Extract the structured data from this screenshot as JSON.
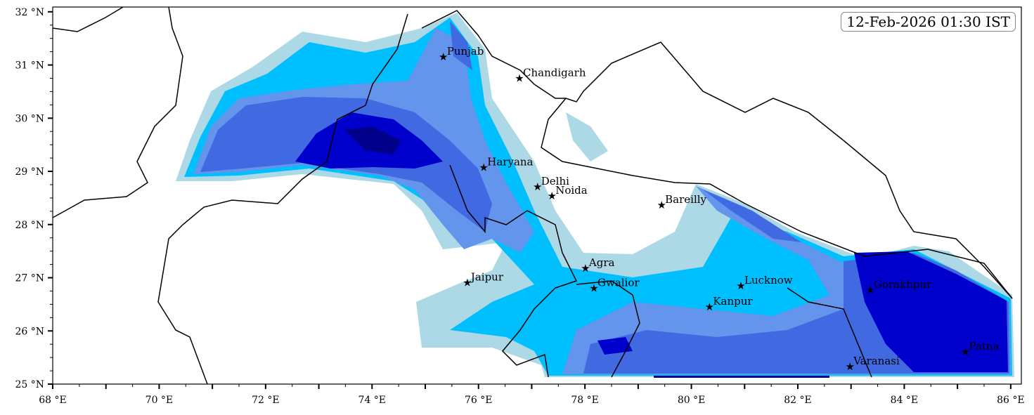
{
  "timestamp": "12-Feb-2026 01:30 IST",
  "axes": {
    "lon_range": [
      68,
      86.2
    ],
    "lat_range": [
      25,
      32.09
    ],
    "x_ticks": [
      {
        "v": 68,
        "label": "68 °E"
      },
      {
        "v": 70,
        "label": "70 °E"
      },
      {
        "v": 72,
        "label": "72 °E"
      },
      {
        "v": 74,
        "label": "74 °E"
      },
      {
        "v": 76,
        "label": "76 °E"
      },
      {
        "v": 78,
        "label": "78 °E"
      },
      {
        "v": 80,
        "label": "80 °E"
      },
      {
        "v": 82,
        "label": "82 °E"
      },
      {
        "v": 84,
        "label": "84 °E"
      },
      {
        "v": 86,
        "label": "86 °E"
      }
    ],
    "y_ticks": [
      {
        "v": 25,
        "label": "25 °N"
      },
      {
        "v": 26,
        "label": "26 °N"
      },
      {
        "v": 27,
        "label": "27 °N"
      },
      {
        "v": 28,
        "label": "28 °N"
      },
      {
        "v": 29,
        "label": "29 °N"
      },
      {
        "v": 30,
        "label": "30 °N"
      },
      {
        "v": 31,
        "label": "31 °N"
      },
      {
        "v": 32,
        "label": "32 °N"
      }
    ]
  },
  "cities": [
    {
      "name": "Punjab",
      "lon": 75.34,
      "lat": 31.15
    },
    {
      "name": "Chandigarh",
      "lon": 76.77,
      "lat": 30.75
    },
    {
      "name": "Haryana",
      "lon": 76.1,
      "lat": 29.07
    },
    {
      "name": "Delhi",
      "lon": 77.11,
      "lat": 28.71
    },
    {
      "name": "Noida",
      "lon": 77.38,
      "lat": 28.54
    },
    {
      "name": "Bareilly",
      "lon": 79.44,
      "lat": 28.37
    },
    {
      "name": "Agra",
      "lon": 78.01,
      "lat": 27.18
    },
    {
      "name": "Jaipur",
      "lon": 75.79,
      "lat": 26.91
    },
    {
      "name": "Gwalior",
      "lon": 78.17,
      "lat": 26.8
    },
    {
      "name": "Lucknow",
      "lon": 80.93,
      "lat": 26.85
    },
    {
      "name": "Kanpur",
      "lon": 80.34,
      "lat": 26.45
    },
    {
      "name": "Gorakhpur",
      "lon": 83.36,
      "lat": 26.77
    },
    {
      "name": "Patna",
      "lon": 85.15,
      "lat": 25.61
    },
    {
      "name": "Varanasi",
      "lon": 82.98,
      "lat": 25.33
    }
  ],
  "colors": {
    "level1": "#add8e6",
    "level2": "#00bfff",
    "level3": "#6495ed",
    "level4": "#4169e1",
    "level5": "#0000cd",
    "level6": "#00008b"
  }
}
